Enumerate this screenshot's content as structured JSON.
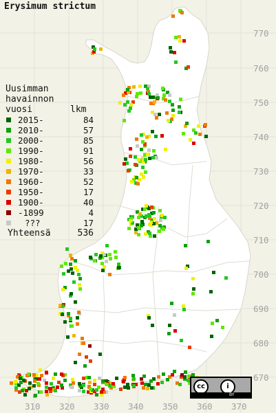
{
  "title": "Erysimum strictum",
  "legend": {
    "header_line1": "Uusimman",
    "header_line2": "havainnon",
    "header_line3": "vuosi",
    "count_header": "lkm",
    "rows": [
      {
        "label": "2015-",
        "count": "84",
        "color": "#006400"
      },
      {
        "label": "2010-",
        "count": "57",
        "color": "#10a010"
      },
      {
        "label": "2000-",
        "count": "85",
        "color": "#22c822"
      },
      {
        "label": "1990-",
        "count": "91",
        "color": "#60e800"
      },
      {
        "label": "1980-",
        "count": "56",
        "color": "#f0f000"
      },
      {
        "label": "1970-",
        "count": "33",
        "color": "#f0b400"
      },
      {
        "label": "1960-",
        "count": "52",
        "color": "#f07800"
      },
      {
        "label": "1950-",
        "count": "17",
        "color": "#e83c00"
      },
      {
        "label": "1900-",
        "count": "40",
        "color": "#dc0000"
      },
      {
        "label": "-1899",
        "count": "4",
        "color": "#8c0000"
      },
      {
        "label": "???",
        "count": "17",
        "color": "#c8c8c8"
      }
    ],
    "total_label": "Yhteensä",
    "total_count": "536"
  },
  "y_grid_labels": [
    "770",
    "760",
    "750",
    "740",
    "730",
    "720",
    "710",
    "700",
    "690",
    "680",
    "670"
  ],
  "x_grid_labels": [
    "310",
    "320",
    "330",
    "340",
    "350",
    "360",
    "370"
  ],
  "license": {
    "cc_symbol": "cc",
    "by_symbol": "i",
    "by_text": "BY"
  },
  "colors": {
    "background": "#f2f2e6",
    "land": "#ffffff",
    "grid": "#e0e0e0",
    "borders": "#d8d8d8"
  }
}
